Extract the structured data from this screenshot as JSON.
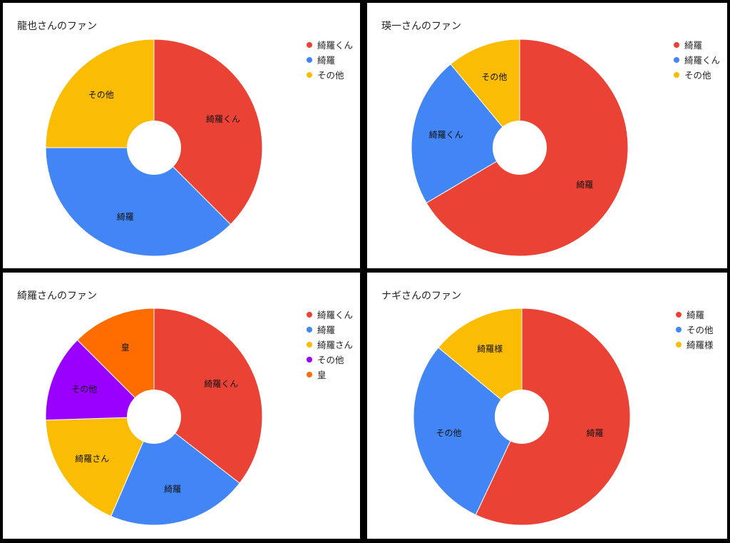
{
  "chart_data": [
    {
      "type": "pie",
      "title": "龍也さんのファン",
      "legend_position": "right",
      "donut": true,
      "start_angle_deg": 0,
      "categories": [
        "綺羅くん",
        "綺羅",
        "その他"
      ],
      "values": [
        37.5,
        37.5,
        25
      ],
      "colors": [
        "#ea4335",
        "#4285f4",
        "#fbbc04"
      ]
    },
    {
      "type": "pie",
      "title": "瑛一さんのファン",
      "legend_position": "right",
      "donut": true,
      "start_angle_deg": 0,
      "categories": [
        "綺羅",
        "綺羅くん",
        "その他"
      ],
      "values": [
        66.5,
        22.5,
        11
      ],
      "colors": [
        "#ea4335",
        "#4285f4",
        "#fbbc04"
      ]
    },
    {
      "type": "pie",
      "title": "綺羅さんのファン",
      "legend_position": "right",
      "donut": true,
      "start_angle_deg": 0,
      "categories": [
        "綺羅くん",
        "綺羅",
        "綺羅さん",
        "その他",
        "皇"
      ],
      "values": [
        35.5,
        21,
        18,
        13,
        12.5
      ],
      "colors": [
        "#ea4335",
        "#4285f4",
        "#fbbc04",
        "#9900ff",
        "#ff6d01"
      ]
    },
    {
      "type": "pie",
      "title": "ナギさんのファン",
      "legend_position": "right",
      "donut": true,
      "start_angle_deg": 0,
      "categories": [
        "綺羅",
        "その他",
        "綺羅様"
      ],
      "values": [
        57,
        29,
        14
      ],
      "colors": [
        "#ea4335",
        "#4285f4",
        "#fbbc04"
      ]
    }
  ]
}
